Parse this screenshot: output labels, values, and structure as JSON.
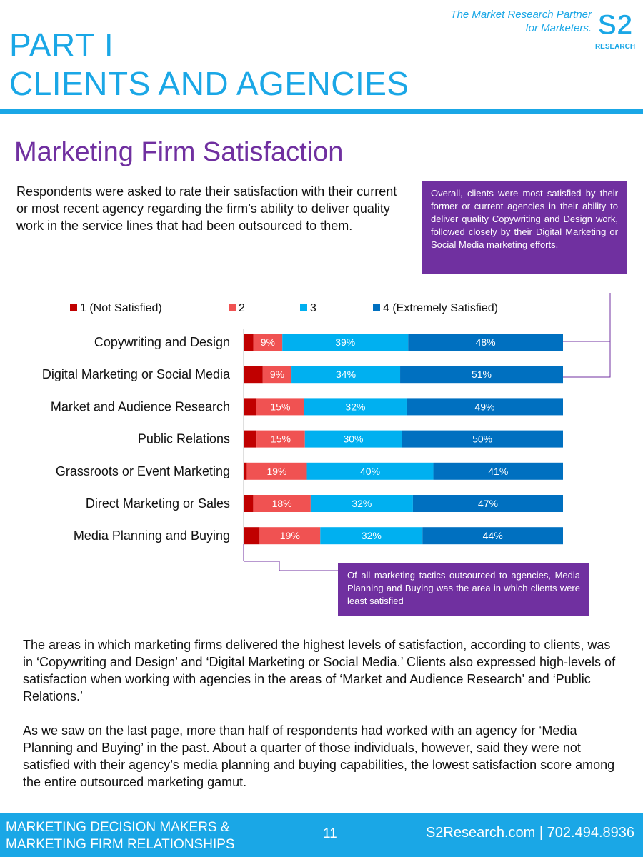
{
  "header": {
    "part_title_line1": "PART I",
    "part_title_line2": "CLIENTS AND AGENCIES",
    "tagline_line1": "The Market Research Partner",
    "tagline_line2": "for Marketers.",
    "logo_main": "S2",
    "logo_sub": "RESEARCH"
  },
  "section_title": "Marketing Firm Satisfaction",
  "intro": "Respondents were asked to rate their satisfaction with their current or most recent agency regarding the firm’s ability to deliver quality work in the service lines that had been outsourced to them.",
  "callouts": {
    "top": "Overall, clients were most satisfied by their former or current agencies in their ability to deliver quality Copywriting and Design work, followed closely by their Digital Marketing or Social Media marketing efforts.",
    "bottom": "Of all marketing tactics outsourced to agencies, Media Planning and Buying was the area in which clients were least satisfied"
  },
  "chart_data": {
    "type": "bar",
    "orientation": "horizontal",
    "stacked": true,
    "title": "",
    "xlabel": "",
    "ylabel": "",
    "legend_position": "top",
    "categories": [
      "Copywriting and Design",
      "Digital Marketing or Social Media",
      "Market and Audience Research",
      "Public Relations",
      "Grassroots or Event Marketing",
      "Direct Marketing or Sales",
      "Media Planning and Buying"
    ],
    "series": [
      {
        "name": "1 (Not Satisfied)",
        "color": "#c00000",
        "values": [
          3,
          6,
          4,
          4,
          1,
          3,
          5
        ],
        "show_labels": false
      },
      {
        "name": "2",
        "color": "#f05252",
        "values": [
          9,
          9,
          15,
          15,
          19,
          18,
          19
        ],
        "show_labels": true
      },
      {
        "name": "3",
        "color": "#00b0f0",
        "values": [
          39,
          34,
          32,
          30,
          40,
          32,
          32
        ],
        "show_labels": true
      },
      {
        "name": "4 (Extremely Satisfied)",
        "color": "#0070c0",
        "values": [
          48,
          51,
          49,
          50,
          41,
          47,
          44
        ],
        "show_labels": true
      }
    ],
    "value_suffix": "%",
    "grid": false
  },
  "body": {
    "paragraph1": "The areas in which marketing firms delivered the highest levels of satisfaction, according to clients, was in ‘Copywriting and Design’ and ‘Digital Marketing or Social Media.’ Clients also expressed high-levels of satisfaction when working with agencies in the areas of ‘Market and Audience Research’ and ‘Public Relations.’",
    "paragraph2": "As we saw on the last page, more than half of respondents had worked with an agency for ‘Media Planning and Buying’ in the past. About a quarter of those individuals, however, said they were not satisfied with their agency’s media planning and buying capabilities, the lowest satisfaction score among the entire outsourced marketing gamut."
  },
  "footer": {
    "left_line1": "MARKETING DECISION MAKERS &",
    "left_line2": "MARKETING FIRM RELATIONSHIPS",
    "page_number": "11",
    "contact": "S2Research.com | 702.494.8936"
  },
  "colors": {
    "accent_blue": "#1aa7e6",
    "purple": "#7030a0"
  }
}
